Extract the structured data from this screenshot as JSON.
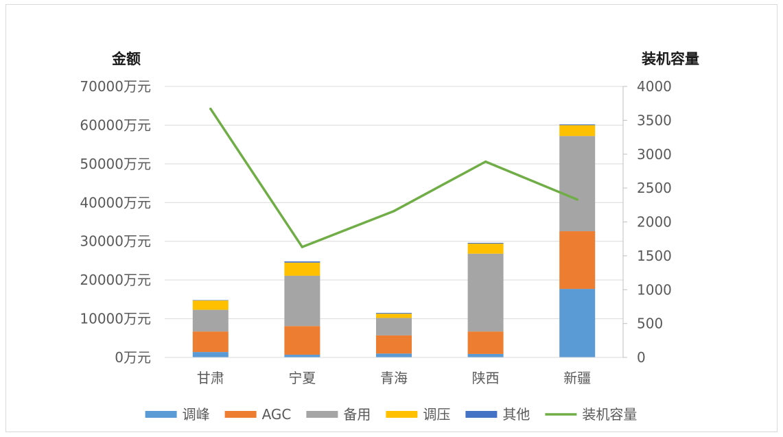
{
  "chart_data": {
    "type": "bar",
    "stacked": true,
    "categories": [
      "甘肃",
      "宁夏",
      "青海",
      "陕西",
      "新疆"
    ],
    "series": [
      {
        "name": "调峰",
        "color": "#5b9bd5",
        "axis": "left",
        "values": [
          1400,
          700,
          1000,
          900,
          17700
        ]
      },
      {
        "name": "AGC",
        "color": "#ed7d31",
        "axis": "left",
        "values": [
          5300,
          7400,
          4700,
          5800,
          14900
        ]
      },
      {
        "name": "备用",
        "color": "#a5a5a5",
        "axis": "left",
        "values": [
          5600,
          13000,
          4500,
          20100,
          24600
        ]
      },
      {
        "name": "调压",
        "color": "#ffc000",
        "axis": "left",
        "values": [
          2400,
          3400,
          1100,
          2600,
          2800
        ]
      },
      {
        "name": "其他",
        "color": "#4472c4",
        "axis": "left",
        "values": [
          100,
          300,
          200,
          200,
          200
        ]
      },
      {
        "name": "装机容量",
        "color": "#70ad47",
        "axis": "right",
        "type": "line",
        "values": [
          3670,
          1630,
          2160,
          2890,
          2330
        ]
      }
    ],
    "y_left": {
      "title": "金额",
      "min": 0,
      "max": 70000,
      "step": 10000,
      "tick_labels": [
        "0万元",
        "10000万元",
        "20000万元",
        "30000万元",
        "40000万元",
        "50000万元",
        "60000万元",
        "70000万元"
      ]
    },
    "y_right": {
      "title": "装机容量",
      "min": 0,
      "max": 4000,
      "step": 500,
      "tick_labels": [
        "0",
        "500",
        "1000",
        "1500",
        "2000",
        "2500",
        "3000",
        "3500",
        "4000"
      ]
    },
    "grid": true,
    "legend_position": "bottom"
  }
}
